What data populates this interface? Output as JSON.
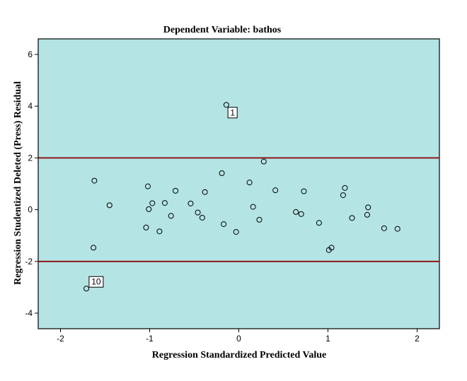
{
  "chart_data": {
    "type": "scatter",
    "title": "Dependent Variable: bathos",
    "xlabel": "Regression Standardized Predicted Value",
    "ylabel": "Regression Studentized Deleted (Press) Residual",
    "xlim": [
      -2.25,
      2.25
    ],
    "ylim": [
      -4.6,
      6.6
    ],
    "x_ticks": [
      -2,
      -1,
      0,
      1,
      2
    ],
    "x_tick_labels": [
      "-2",
      "-1",
      "0",
      "1",
      "2"
    ],
    "y_ticks": [
      -4,
      -2,
      0,
      2,
      4,
      6
    ],
    "y_tick_labels": [
      "-4",
      "-2",
      "0",
      "2",
      "4",
      "6"
    ],
    "reference_lines_y": [
      2,
      -2
    ],
    "grid": false,
    "colors": {
      "plot_background": "#b4e4e4",
      "reference_line": "#8b1a1a",
      "marker_stroke": "#000000"
    },
    "points": [
      {
        "x": -0.14,
        "y": 4.05
      },
      {
        "x": -1.71,
        "y": -3.05
      },
      {
        "x": -1.62,
        "y": 1.12
      },
      {
        "x": -1.63,
        "y": -1.47
      },
      {
        "x": -1.45,
        "y": 0.17
      },
      {
        "x": -1.02,
        "y": 0.9
      },
      {
        "x": -1.01,
        "y": 0.02
      },
      {
        "x": -1.04,
        "y": -0.69
      },
      {
        "x": -0.97,
        "y": 0.25
      },
      {
        "x": -0.89,
        "y": -0.84
      },
      {
        "x": -0.83,
        "y": 0.26
      },
      {
        "x": -0.76,
        "y": -0.24
      },
      {
        "x": -0.71,
        "y": 0.73
      },
      {
        "x": -0.54,
        "y": 0.24
      },
      {
        "x": -0.46,
        "y": -0.11
      },
      {
        "x": -0.41,
        "y": -0.31
      },
      {
        "x": -0.38,
        "y": 0.68
      },
      {
        "x": -0.19,
        "y": 1.41
      },
      {
        "x": -0.17,
        "y": -0.56
      },
      {
        "x": -0.03,
        "y": -0.86
      },
      {
        "x": 0.12,
        "y": 1.05
      },
      {
        "x": 0.16,
        "y": 0.11
      },
      {
        "x": 0.23,
        "y": -0.39
      },
      {
        "x": 0.28,
        "y": 1.86
      },
      {
        "x": 0.41,
        "y": 0.75
      },
      {
        "x": 0.64,
        "y": -0.09
      },
      {
        "x": 0.7,
        "y": -0.17
      },
      {
        "x": 0.73,
        "y": 0.71
      },
      {
        "x": 0.9,
        "y": -0.51
      },
      {
        "x": 1.01,
        "y": -1.56
      },
      {
        "x": 1.04,
        "y": -1.47
      },
      {
        "x": 1.17,
        "y": 0.56
      },
      {
        "x": 1.19,
        "y": 0.84
      },
      {
        "x": 1.27,
        "y": -0.32
      },
      {
        "x": 1.44,
        "y": -0.2
      },
      {
        "x": 1.45,
        "y": 0.09
      },
      {
        "x": 1.63,
        "y": -0.72
      },
      {
        "x": 1.78,
        "y": -0.74
      }
    ],
    "annotations": [
      {
        "text": "1",
        "x": -0.07,
        "y": 3.75
      },
      {
        "text": "10",
        "x": -1.6,
        "y": -2.79
      }
    ]
  }
}
